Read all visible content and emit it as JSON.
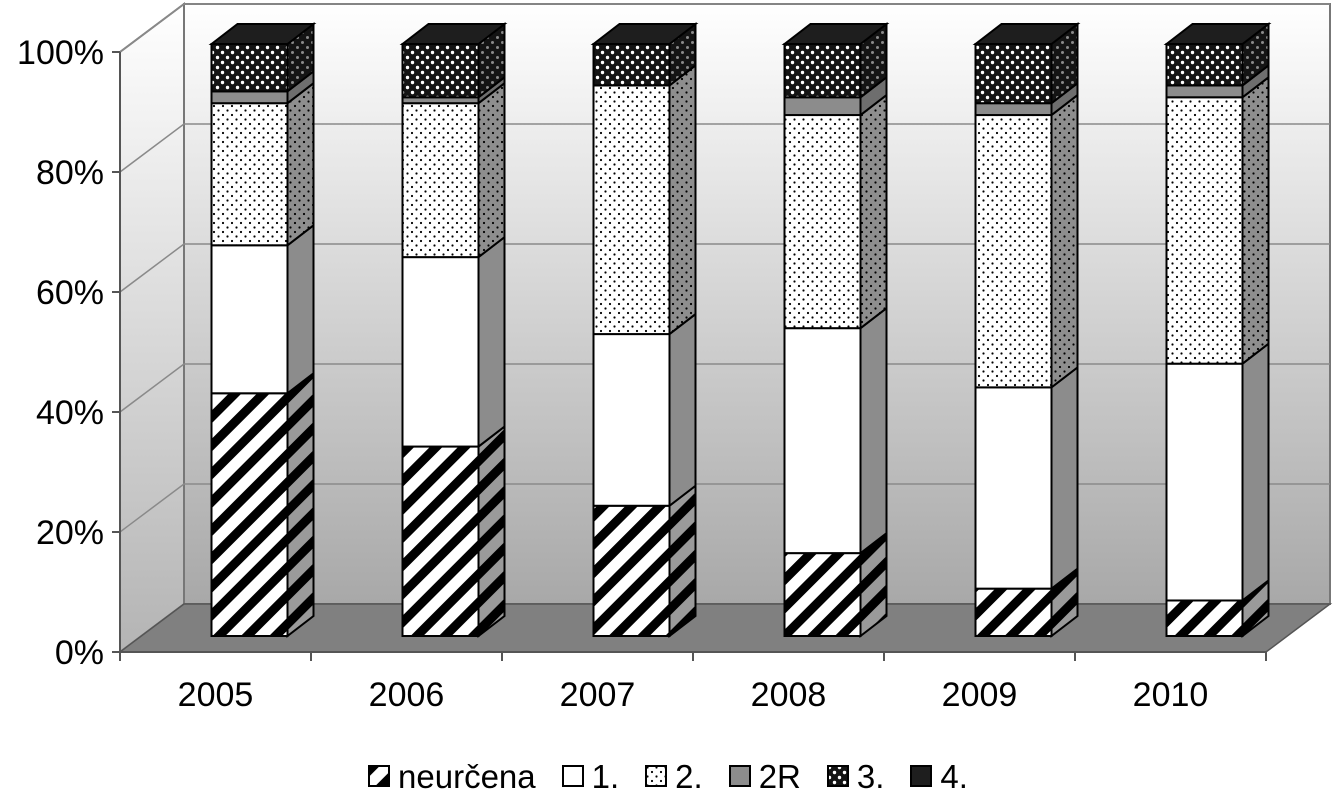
{
  "chart_data": {
    "type": "bar",
    "stacked": true,
    "percent": true,
    "categories": [
      "2005",
      "2006",
      "2007",
      "2008",
      "2009",
      "2010"
    ],
    "series": [
      {
        "name": "neurčena",
        "pattern": "hatch",
        "values": [
          41,
          32,
          22,
          14,
          8,
          6
        ]
      },
      {
        "name": "1.",
        "pattern": "white",
        "values": [
          25,
          32,
          29,
          38,
          34,
          40
        ]
      },
      {
        "name": "2.",
        "pattern": "dots",
        "values": [
          24,
          26,
          42,
          36,
          46,
          45
        ]
      },
      {
        "name": "2R",
        "pattern": "gray",
        "values": [
          2,
          1,
          0,
          3,
          2,
          2
        ]
      },
      {
        "name": "3.",
        "pattern": "checks",
        "values": [
          8,
          9,
          7,
          9,
          10,
          7
        ]
      },
      {
        "name": "4.",
        "pattern": "black",
        "values": [
          0,
          0,
          0,
          0,
          0,
          0
        ]
      }
    ],
    "yticks": [
      "0%",
      "20%",
      "40%",
      "60%",
      "80%",
      "100%"
    ],
    "ylim": [
      0,
      100
    ],
    "grid": true,
    "legend_position": "bottom",
    "colors": {
      "gray_fill": "#8c8c8c",
      "floor": "#808080",
      "dark": "#1e1e1e"
    }
  }
}
